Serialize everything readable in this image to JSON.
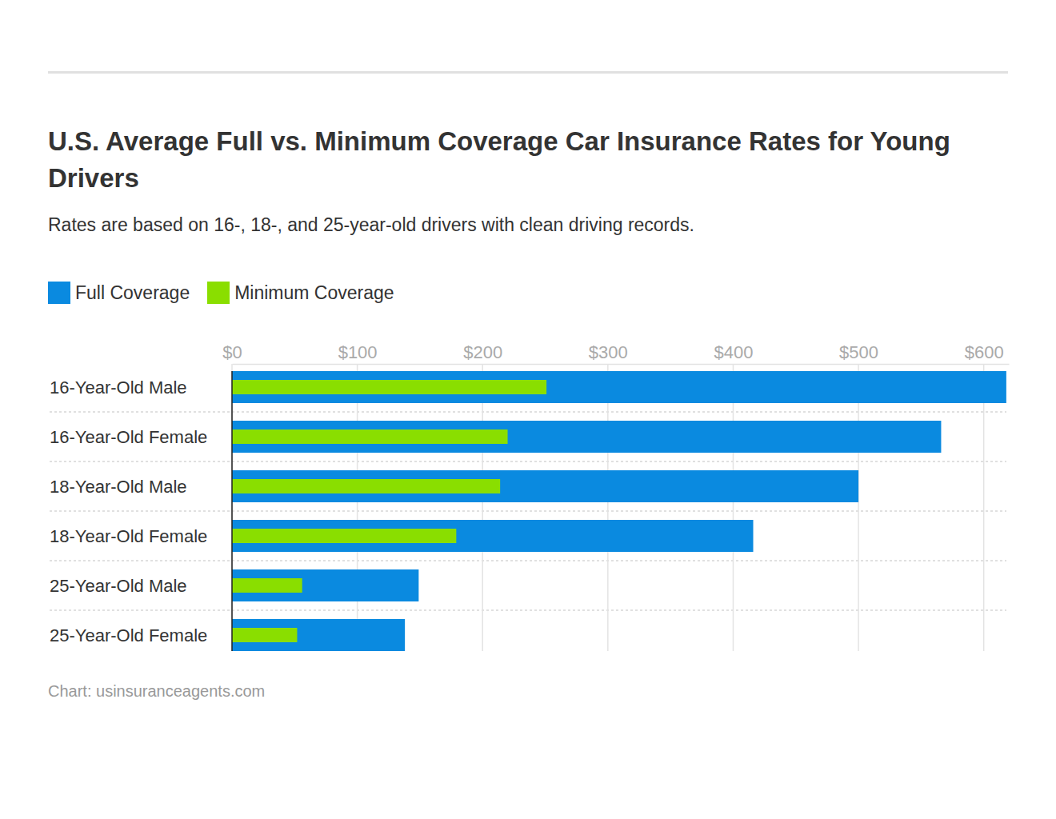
{
  "chart_data": {
    "type": "bar",
    "orientation": "horizontal",
    "title": "U.S. Average Full vs. Minimum Coverage Car Insurance Rates for Young Drivers",
    "subtitle": "Rates are based on 16-, 18-, and 25-year-old drivers with clean driving records.",
    "source": "Chart: usinsuranceagents.com",
    "categories": [
      "16-Year-Old Male",
      "16-Year-Old Female",
      "18-Year-Old Male",
      "18-Year-Old Female",
      "25-Year-Old Male",
      "25-Year-Old Female"
    ],
    "series": [
      {
        "name": "Full Coverage",
        "color": "#0a8ae0",
        "values": [
          618,
          566,
          500,
          416,
          149,
          138
        ]
      },
      {
        "name": "Minimum Coverage",
        "color": "#8ade00",
        "values": [
          251,
          220,
          214,
          179,
          56,
          52
        ]
      }
    ],
    "xlim": [
      0,
      620
    ],
    "xticks": [
      {
        "value": 0,
        "label": "$0"
      },
      {
        "value": 100,
        "label": "$100"
      },
      {
        "value": 200,
        "label": "$200"
      },
      {
        "value": 300,
        "label": "$300"
      },
      {
        "value": 400,
        "label": "$400"
      },
      {
        "value": 500,
        "label": "$500"
      },
      {
        "value": 600,
        "label": "$600"
      }
    ],
    "grid": true,
    "legend": "top-left"
  }
}
